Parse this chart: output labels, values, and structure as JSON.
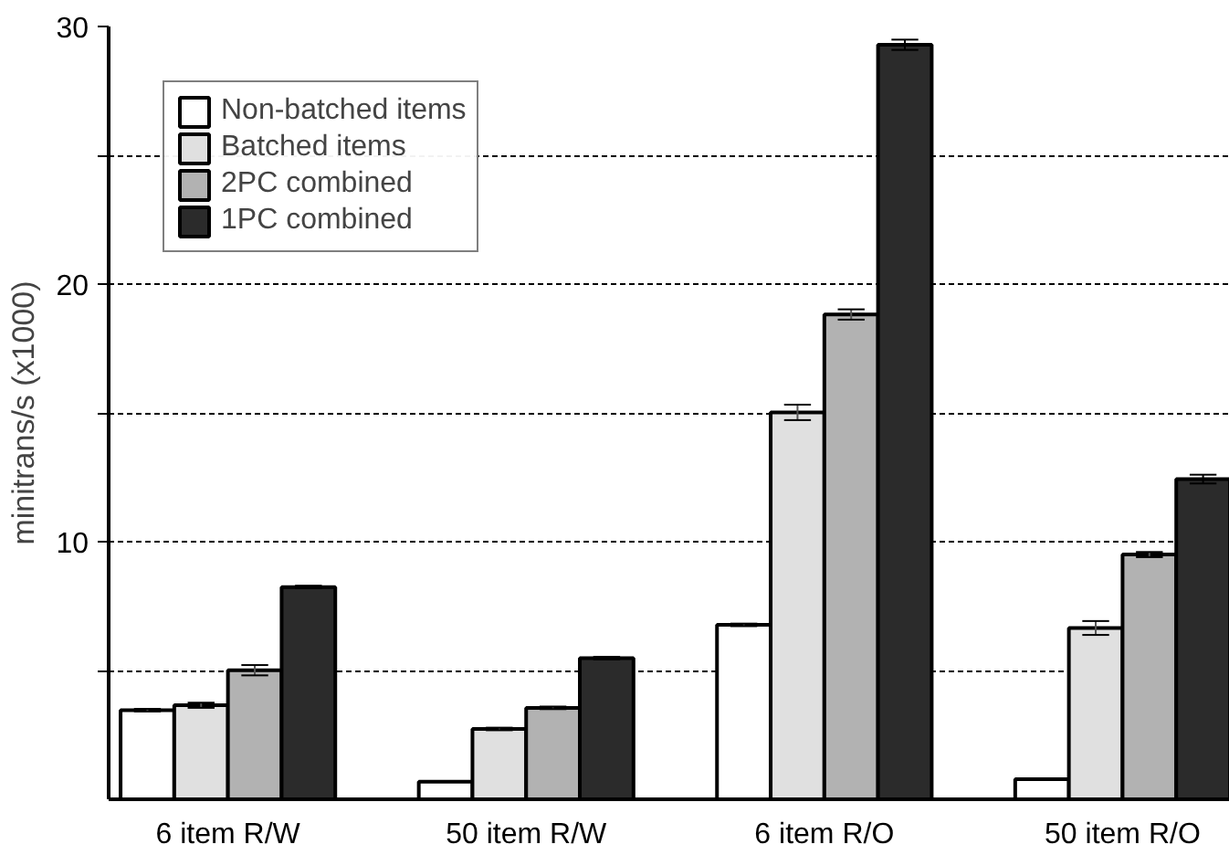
{
  "chart_data": {
    "type": "bar",
    "ylabel": "minitrans/s (x1000)",
    "categories": [
      "6 item R/W",
      "50 item R/W",
      "6 item R/O",
      "50 item R/O"
    ],
    "series": [
      {
        "name": "Non-batched items",
        "color": "#ffffff",
        "values": [
          3.46,
          0.68,
          6.77,
          0.78
        ],
        "errors": [
          0.05,
          null,
          0.05,
          null
        ]
      },
      {
        "name": "Batched items",
        "color": "#e0e0e0",
        "values": [
          3.65,
          2.73,
          15.02,
          6.65
        ],
        "errors": [
          0.1,
          0.05,
          0.3,
          0.27
        ]
      },
      {
        "name": "2PC combined",
        "color": "#b2b2b2",
        "values": [
          5.01,
          3.55,
          18.82,
          9.5
        ],
        "errors": [
          0.2,
          0.05,
          0.2,
          0.1
        ]
      },
      {
        "name": "1PC combined",
        "color": "#2b2b2b",
        "values": [
          8.24,
          5.48,
          29.29,
          12.43
        ],
        "errors": [
          0.05,
          0.05,
          0.2,
          0.17
        ]
      }
    ],
    "ylim": [
      0,
      30
    ],
    "yticks": [
      {
        "value": 5,
        "label": null
      },
      10,
      {
        "value": 15,
        "label": null
      },
      20,
      {
        "value": 25,
        "label": null
      },
      30
    ],
    "grid": "y",
    "legend": "top left"
  }
}
